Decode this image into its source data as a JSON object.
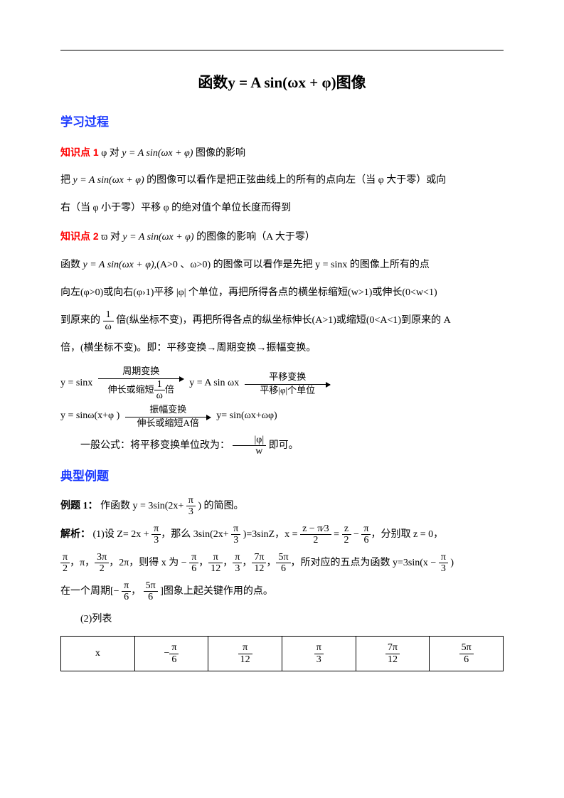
{
  "title_pre": "函数",
  "title_eq": "y = A sin(ωx + φ)",
  "title_post": "图像",
  "sec_learn": "学习过程",
  "kp1_label": "知识点 1",
  "kp1_text_a": "φ 对 ",
  "kp1_eq": "y = A sin(ωx + φ)",
  "kp1_text_b": " 图像的影响",
  "p1a": "把 ",
  "p1eq": "y = A sin(ωx + φ)",
  "p1b": " 的图像可以看作是把正弦曲线上的所有的点向左（当 φ 大于零）或向",
  "p1c": "右（当 φ 小于零）平移 φ 的绝对值个单位长度而得到",
  "kp2_label": "知识点 2",
  "kp2_text_a": "ϖ 对 ",
  "kp2_eq": "y = A sin(ωx + φ)",
  "kp2_text_b": " 的图像的影响（A 大于零）",
  "p2a_pre": "函数 ",
  "p2a_eq": "y = A sin(ωx + φ)",
  "p2a_post": ",(A>0 、ω>0) 的图像可以看作是先把 y = sinx 的图像上所有的点",
  "p2b": "向左(φ>0)或向右(φ›1)平移 |φ| 个单位，再把所得各点的横坐标缩短(w>1)或伸长(0<w<1)",
  "p2c_pre": "到原来的 ",
  "p2c_frac_n": "1",
  "p2c_frac_d": "ω",
  "p2c_post": " 倍(纵坐标不变)，再把所得各点的纵坐标伸长(A>1)或缩短(0<A<1)到原来的 A",
  "p2d": "倍，(横坐标不变)。即：平移变换→周期变换→振幅变换。",
  "d_start": "y = sinx",
  "arr1_top": "周期变换",
  "arr1_bot_pre": "伸长或缩短",
  "arr1_bot_n": "1",
  "arr1_bot_d": "ω",
  "arr1_bot_post": "倍",
  "d_mid1": "y = A sin ωx",
  "arr2_top": "平移变换",
  "arr2_bot": "平移|φ|个单位",
  "d_line2a": "y = sinω(x+φ )",
  "arr3_top": "振幅变换",
  "arr3_bot": "伸长或缩短A倍",
  "d_line2b": "y= sin(ωx+ωφ)",
  "general_pre": "一般公式：将平移变换单位改为：",
  "gen_frac_top": "|φ|",
  "gen_frac_bot": "w",
  "general_post": " 即可。",
  "sec_examples": "典型例题",
  "ex1_label": "例题 1：",
  "ex1_text_a": "作函数 y = 3sin(2x+ ",
  "ex1_frac_n": "π",
  "ex1_frac_d": "3",
  "ex1_text_b": " ) 的简图。",
  "ana_label": "解析：",
  "ana1_a": "(1)设 Z= 2x + ",
  "ana1_b": "，那么 3sin(2x+ ",
  "ana1_c": " )=3sinZ，x = ",
  "ana1_zfrac_n": "z − π⁄3",
  "ana1_zfrac_d": "2",
  "ana1_eq2": " = ",
  "ana1_f2n": "z",
  "ana1_f2d": "2",
  "ana1_minus": " − ",
  "ana1_f3n": "π",
  "ana1_f3d": "6",
  "ana1_d": "，分别取 z = 0，",
  "ana2_a": "，π，",
  "ana2_b": "，2π，则得 x 为 − ",
  "ana2_c": "，",
  "ana2_d": "，所对应的五点为函数 y=3sin(x − ",
  "ana2_e": " )",
  "f_pi2_n": "π",
  "f_pi2_d": "2",
  "f_3pi2_n": "3π",
  "f_3pi2_d": "2",
  "f_pi6_n": "π",
  "f_pi6_d": "6",
  "f_pi12_n": "π",
  "f_pi12_d": "12",
  "f_pi3_n": "π",
  "f_pi3_d": "3",
  "f_7pi12_n": "7π",
  "f_7pi12_d": "12",
  "f_5pi6_n": "5π",
  "f_5pi6_d": "6",
  "ana3_a": "在一个周期[− ",
  "ana3_b": "， ",
  "ana3_c": " ]图象上起关键作用的点。",
  "tbl_label": "(2)列表",
  "tbl": {
    "h": "x",
    "c1_sign": "−",
    "c1n": "π",
    "c1d": "6",
    "c2n": "π",
    "c2d": "12",
    "c3n": "π",
    "c3d": "3",
    "c4n": "7π",
    "c4d": "12",
    "c5n": "5π",
    "c5d": "6"
  }
}
